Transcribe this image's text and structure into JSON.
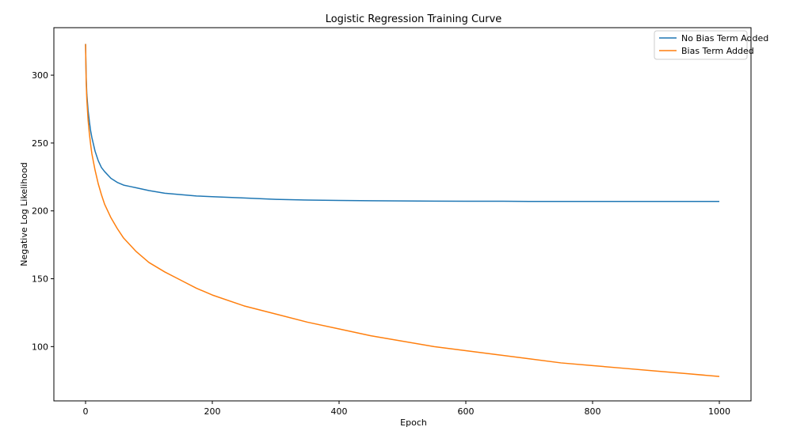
{
  "chart_data": {
    "type": "line",
    "title": "Logistic Regression Training Curve",
    "xlabel": "Epoch",
    "ylabel": "Negative Log Likelihood",
    "xlim": [
      -50,
      1050
    ],
    "ylim": [
      60,
      335
    ],
    "xticks": [
      0,
      200,
      400,
      600,
      800,
      1000
    ],
    "yticks": [
      100,
      150,
      200,
      250,
      300
    ],
    "grid": false,
    "legend_position": "top-right",
    "x": [
      0,
      1,
      2,
      4,
      6,
      8,
      10,
      15,
      20,
      25,
      30,
      40,
      50,
      60,
      70,
      80,
      90,
      100,
      125,
      150,
      175,
      200,
      250,
      300,
      350,
      400,
      450,
      500,
      550,
      600,
      650,
      700,
      750,
      800,
      850,
      900,
      950,
      1000
    ],
    "series": [
      {
        "name": "No Bias Term Added",
        "color": "#1f77b4",
        "values": [
          323,
          298,
          286,
          274,
          266,
          259,
          254,
          244,
          237,
          232,
          229,
          224,
          221,
          219,
          218,
          217,
          216,
          215,
          213,
          212,
          211,
          210.5,
          209.5,
          208.5,
          208,
          207.7,
          207.5,
          207.3,
          207.2,
          207.1,
          207.1,
          207.0,
          207.0,
          207.0,
          207.0,
          207.0,
          207.0,
          207.0
        ]
      },
      {
        "name": "Bias Term Added",
        "color": "#ff7f0e",
        "values": [
          323,
          295,
          282,
          267,
          257,
          249,
          242,
          230,
          220,
          212,
          205,
          195,
          187,
          180,
          175,
          170,
          166,
          162,
          155,
          149,
          143,
          138,
          130,
          124,
          118,
          113,
          108,
          104,
          100,
          97,
          94,
          91,
          88,
          86,
          84,
          82,
          80,
          78
        ]
      }
    ]
  }
}
